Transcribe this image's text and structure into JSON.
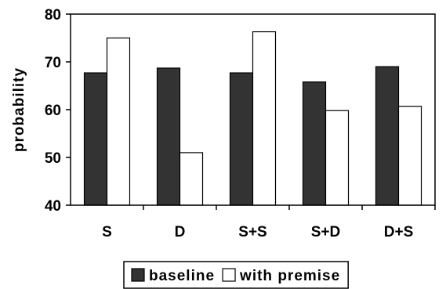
{
  "chart_data": {
    "type": "bar",
    "categories": [
      "S",
      "D",
      "S+S",
      "S+D",
      "D+S"
    ],
    "series": [
      {
        "name": "baseline",
        "values": [
          67.7,
          68.7,
          67.7,
          65.8,
          69.0
        ],
        "color": "#333333"
      },
      {
        "name": "with premise",
        "values": [
          75.0,
          51.0,
          76.3,
          59.8,
          60.7
        ],
        "color": "#ffffff"
      }
    ],
    "ylabel": "probability",
    "xlabel": "",
    "ylim": [
      40,
      80
    ],
    "yticks": [
      40,
      50,
      60,
      70,
      80
    ],
    "grid": false,
    "legend": "bottom"
  }
}
